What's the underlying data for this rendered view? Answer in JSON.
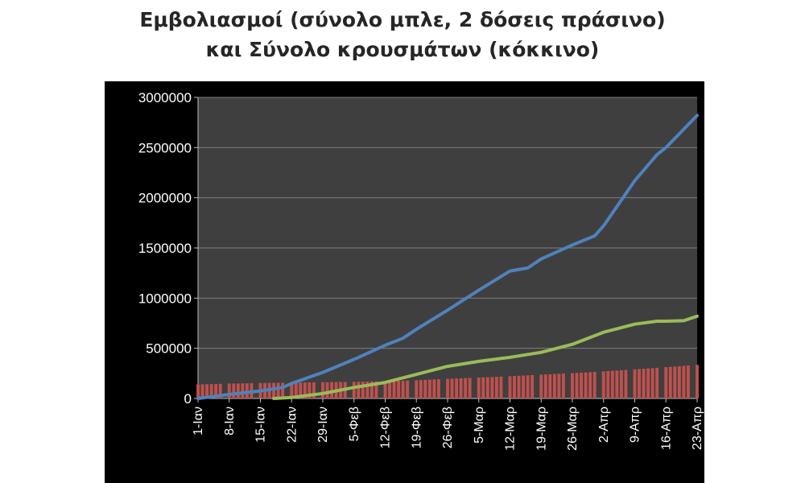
{
  "chart_data": {
    "type": "line",
    "title_lines": [
      "Εμβολιασμοί (σύνολο μπλε, 2 δόσεις πράσινο)",
      "και Σύνολο κρουσμάτων (κόκκινο)"
    ],
    "xlabel": "",
    "ylabel": "",
    "ylim": [
      0,
      3000000
    ],
    "y_ticks": [
      0,
      500000,
      1000000,
      1500000,
      2000000,
      2500000,
      3000000
    ],
    "x_range_days": [
      1,
      113
    ],
    "x_tick_days": [
      1,
      8,
      15,
      22,
      29,
      36,
      43,
      50,
      57,
      64,
      71,
      78,
      85,
      92,
      99,
      106,
      113
    ],
    "x_tick_labels": [
      "1-Ιαν",
      "8-Ιαν",
      "15-Ιαν",
      "22-Ιαν",
      "29-Ιαν",
      "5-Φεβ",
      "12-Φεβ",
      "19-Φεβ",
      "26-Φεβ",
      "5-Μαρ",
      "12-Μαρ",
      "19-Μαρ",
      "26-Μαρ",
      "2-Απρ",
      "9-Απρ",
      "16-Απρ",
      "23-Απρ"
    ],
    "background": "#000000",
    "gridlines": "horizontal",
    "legend": "none",
    "series": [
      {
        "type": "line",
        "color": "#4f81bd",
        "x": [
          1,
          8,
          15,
          20,
          22,
          29,
          36,
          43,
          47,
          50,
          57,
          64,
          71,
          75,
          78,
          85,
          90,
          92,
          99,
          104,
          106,
          113
        ],
        "values": [
          0,
          40000,
          75000,
          110000,
          150000,
          260000,
          390000,
          530000,
          600000,
          690000,
          880000,
          1080000,
          1270000,
          1300000,
          1390000,
          1530000,
          1620000,
          1720000,
          2170000,
          2430000,
          2500000,
          2820000
        ]
      },
      {
        "type": "line",
        "color": "#9bbb59",
        "x": [
          18,
          22,
          29,
          36,
          43,
          50,
          57,
          64,
          71,
          78,
          85,
          92,
          99,
          104,
          106,
          110,
          113
        ],
        "values": [
          0,
          10000,
          50000,
          110000,
          160000,
          240000,
          320000,
          370000,
          410000,
          460000,
          540000,
          660000,
          740000,
          770000,
          770000,
          775000,
          820000
        ]
      },
      {
        "type": "bar",
        "color": "#c0504d",
        "x": [
          1,
          8,
          15,
          22,
          29,
          36,
          43,
          50,
          57,
          64,
          71,
          78,
          85,
          92,
          99,
          106,
          113
        ],
        "values": [
          140000,
          148000,
          154000,
          158000,
          162000,
          166000,
          172000,
          182000,
          196000,
          208000,
          222000,
          238000,
          252000,
          270000,
          290000,
          312000,
          335000
        ]
      }
    ]
  }
}
